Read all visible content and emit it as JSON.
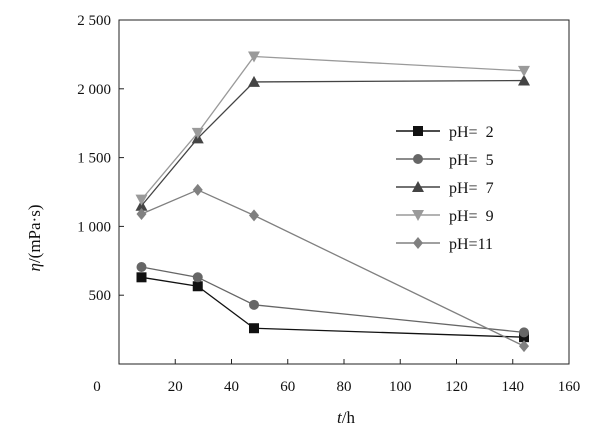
{
  "chart_data": {
    "type": "line",
    "title": "",
    "xlabel": "t/h",
    "ylabel": "η/(mPa·s)",
    "xlabel_parts": {
      "symbol": "t",
      "unit": "/h"
    },
    "ylabel_parts": {
      "symbol": "η",
      "unit": "/(mPa·s)"
    },
    "xlim": [
      0,
      160
    ],
    "ylim": [
      0,
      2500
    ],
    "x_ticks": [
      0,
      20,
      40,
      60,
      80,
      100,
      120,
      140,
      160
    ],
    "y_ticks": [
      500,
      1000,
      1500,
      2000,
      2500
    ],
    "x_tick_labels": [
      "0",
      "20",
      "40",
      "60",
      "80",
      "100",
      "120",
      "140",
      "160"
    ],
    "y_tick_labels": [
      "500",
      "1 000",
      "1 500",
      "2 000",
      "2 500"
    ],
    "grid": false,
    "legend_position": "right",
    "x": [
      8,
      28,
      48,
      144
    ],
    "series": [
      {
        "name": "pH=  2",
        "values": [
          630,
          565,
          260,
          195
        ],
        "color": "#111111",
        "marker": "square"
      },
      {
        "name": "pH=  5",
        "values": [
          705,
          630,
          430,
          230
        ],
        "color": "#666666",
        "marker": "circle"
      },
      {
        "name": "pH=  7",
        "values": [
          1150,
          1640,
          2050,
          2060
        ],
        "color": "#444444",
        "marker": "triangle-up"
      },
      {
        "name": "pH=  9",
        "values": [
          1195,
          1680,
          2235,
          2130
        ],
        "color": "#9a9a9a",
        "marker": "triangle-down"
      },
      {
        "name": "pH=11",
        "values": [
          1090,
          1265,
          1080,
          130
        ],
        "color": "#808080",
        "marker": "diamond"
      }
    ]
  }
}
